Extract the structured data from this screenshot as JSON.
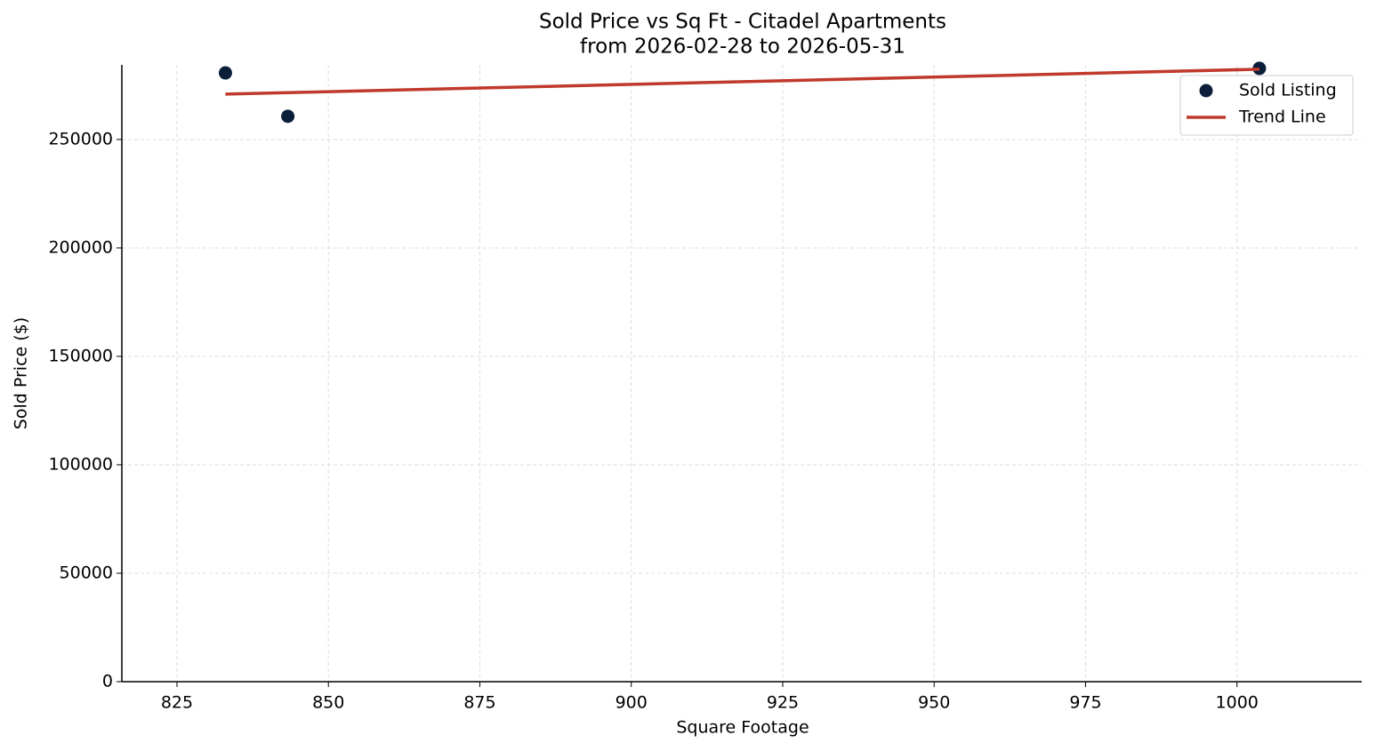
{
  "chart_data": {
    "type": "scatter",
    "title": "Sold Price vs Sq Ft - Citadel Apartments",
    "subtitle": "from 2026-02-28 to 2026-05-31",
    "x_label": "Square Footage",
    "y_label": "Sold Price ($)",
    "series": [
      {
        "name": "Sold Listing",
        "color": "#0b1f3a",
        "kind": "scatter",
        "x": [
          833.0,
          843.3,
          1003.7
        ],
        "values": [
          280700,
          260700,
          282800
        ]
      },
      {
        "name": "Trend Line",
        "color": "#c0392b",
        "kind": "line",
        "x": [
          833.0,
          1003.7
        ],
        "values": [
          270900,
          282400
        ]
      }
    ],
    "xlim": [
      815.9,
      1020.6
    ],
    "xticks": [
      825,
      850,
      875,
      900,
      925,
      950,
      975,
      1000
    ],
    "ylim": [
      0,
      284400
    ],
    "yticks": [
      0,
      50000,
      100000,
      150000,
      200000,
      250000
    ],
    "grid": true,
    "legend": "upper-right"
  }
}
